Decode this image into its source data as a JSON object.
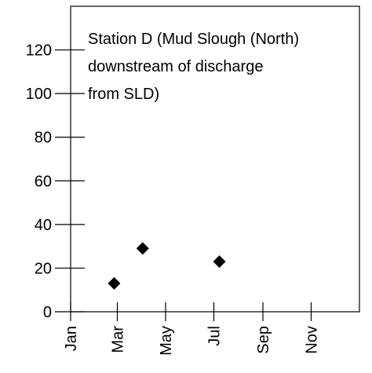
{
  "chart_data": {
    "type": "scatter",
    "annotation": [
      "Station D (Mud Slough (North)",
      "downstream of discharge",
      "from SLD)"
    ],
    "x": [
      55,
      91,
      188
    ],
    "values": [
      13,
      29,
      23
    ],
    "color": "#000000",
    "xlim": [
      0,
      365
    ],
    "xticks": [
      {
        "value": 0,
        "label": "Jan"
      },
      {
        "value": 59,
        "label": "Mar"
      },
      {
        "value": 120,
        "label": "May"
      },
      {
        "value": 181,
        "label": "Jul"
      },
      {
        "value": 243,
        "label": "Sep"
      },
      {
        "value": 304,
        "label": "Nov"
      }
    ],
    "ylim": [
      0,
      140
    ],
    "yticks": [
      0,
      20,
      40,
      60,
      80,
      100,
      120
    ],
    "grid": false
  }
}
